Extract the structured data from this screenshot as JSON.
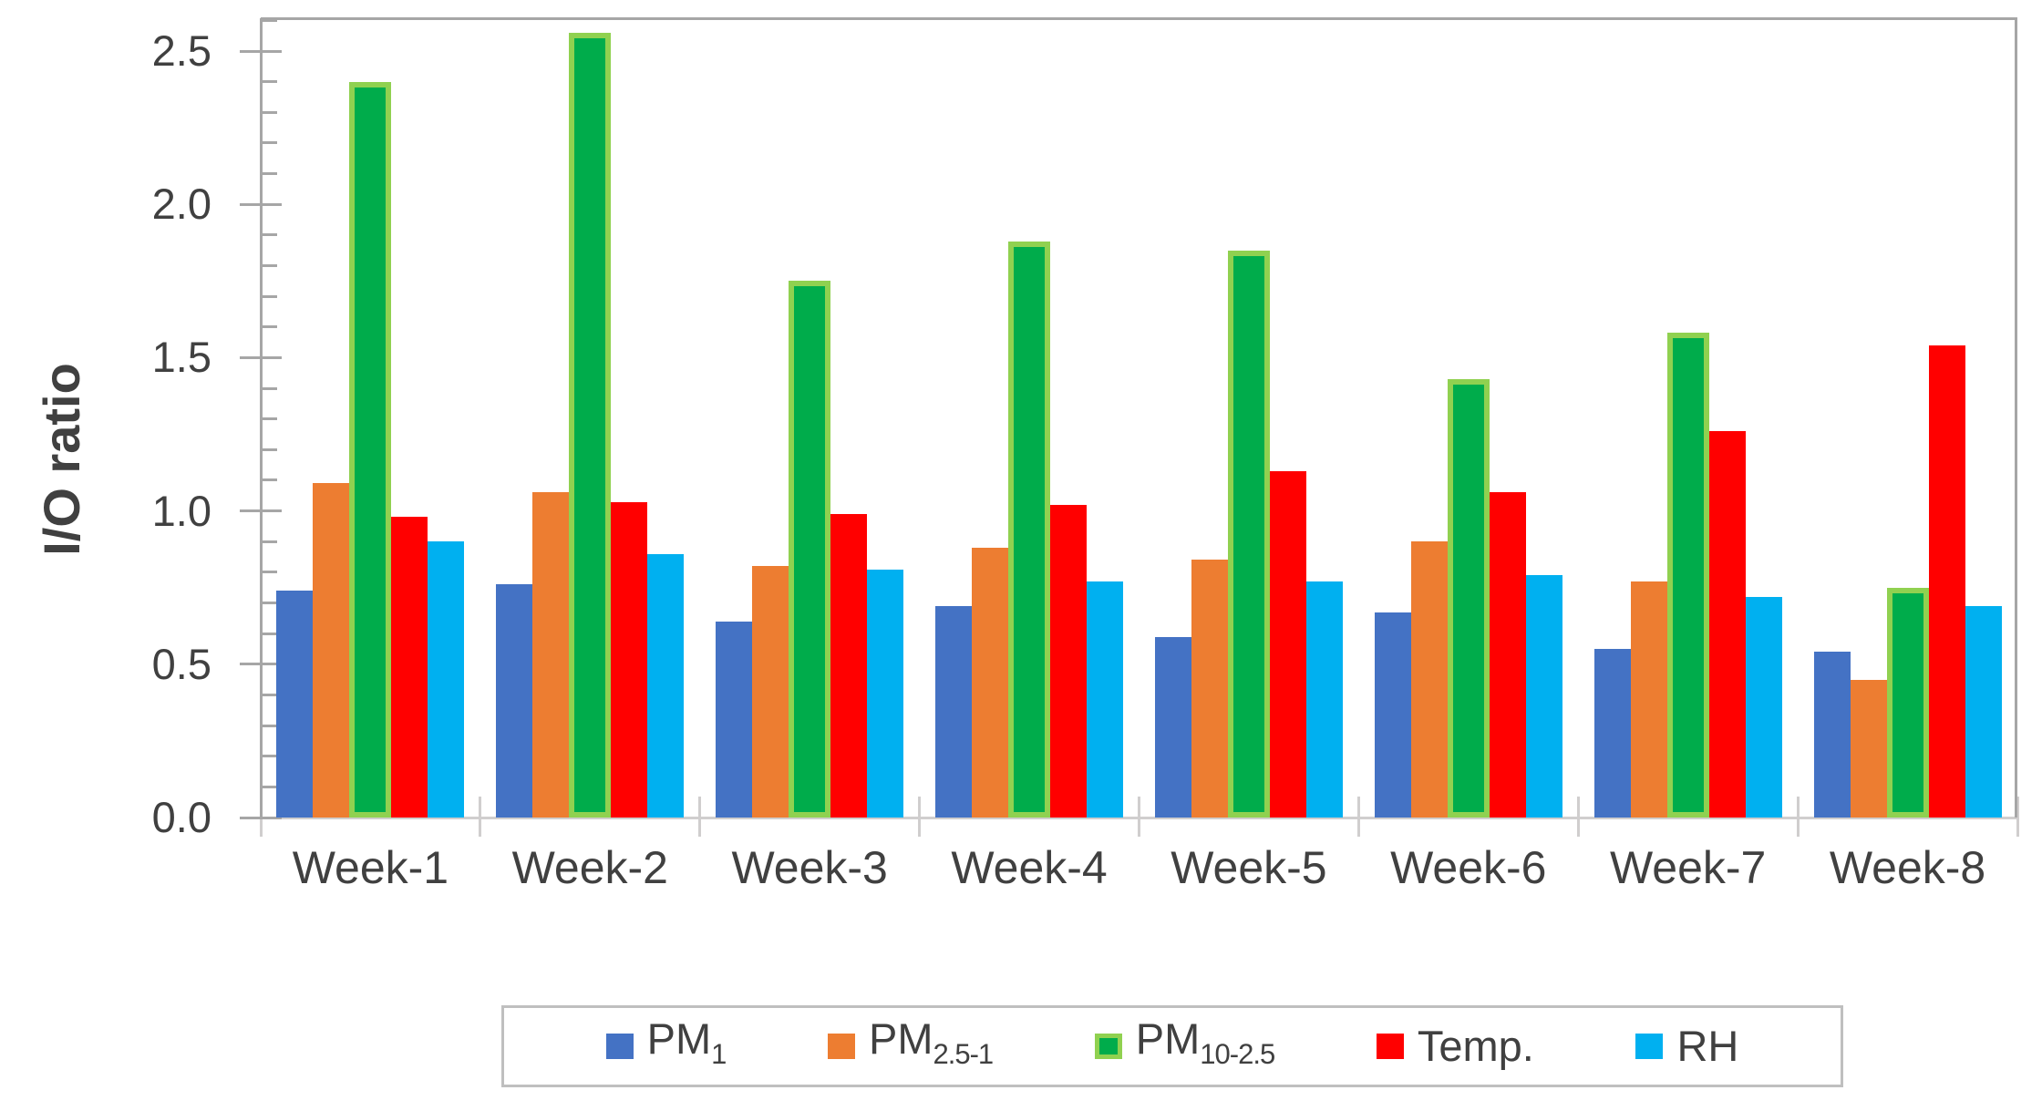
{
  "chart_data": {
    "type": "bar",
    "title": "",
    "ylabel": "I/O ratio",
    "xlabel": "",
    "ylim": [
      0,
      2.5
    ],
    "yticks": [
      0.0,
      0.5,
      1.0,
      1.5,
      2.0,
      2.5
    ],
    "ytick_labels": [
      "0.0",
      "0.5",
      "1.0",
      "1.5",
      "2.0",
      "2.5"
    ],
    "minor_tick_interval": 0.1,
    "grid": false,
    "legend_position": "bottom",
    "categories": [
      "Week-1",
      "Week-2",
      "Week-3",
      "Week-4",
      "Week-5",
      "Week-6",
      "Week-7",
      "Week-8"
    ],
    "series": [
      {
        "name": "PM1",
        "label_base": "PM",
        "label_sub": "1",
        "color": "#4472C4",
        "values": [
          0.74,
          0.76,
          0.64,
          0.69,
          0.59,
          0.67,
          0.55,
          0.54
        ]
      },
      {
        "name": "PM2.5-1",
        "label_base": "PM",
        "label_sub": "2.5-1",
        "color": "#ED7D31",
        "values": [
          1.09,
          1.06,
          0.82,
          0.88,
          0.84,
          0.9,
          0.77,
          0.45
        ]
      },
      {
        "name": "PM10-2.5",
        "label_base": "PM",
        "label_sub": "10-2.5",
        "color": "#00AC4B",
        "border_color": "#90D150",
        "values": [
          2.4,
          2.56,
          1.75,
          1.88,
          1.85,
          1.43,
          1.58,
          0.75
        ]
      },
      {
        "name": "Temp.",
        "label_base": "Temp.",
        "label_sub": "",
        "color": "#FF0000",
        "values": [
          0.98,
          1.03,
          0.99,
          1.02,
          1.13,
          1.06,
          1.26,
          1.54
        ]
      },
      {
        "name": "RH",
        "label_base": "RH",
        "label_sub": "",
        "color": "#00B0F0",
        "values": [
          0.9,
          0.86,
          0.81,
          0.77,
          0.77,
          0.79,
          0.72,
          0.69
        ]
      }
    ],
    "colors": {
      "axis": "#A6A6A6",
      "baseline": "#D0CECE",
      "text": "#404040",
      "plot_border": "#A6A6A6",
      "legend_border": "#BFBFBF"
    }
  }
}
